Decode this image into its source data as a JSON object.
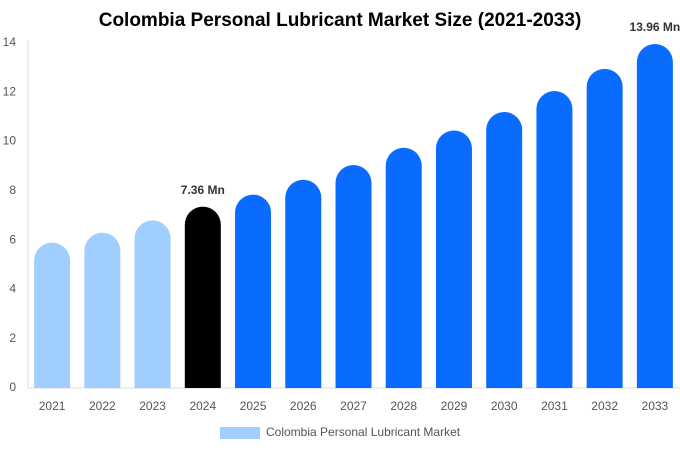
{
  "chart_data": {
    "type": "bar",
    "title": "Colombia Personal Lubricant Market Size (2021-2033)",
    "categories": [
      "2021",
      "2022",
      "2023",
      "2024",
      "2025",
      "2026",
      "2027",
      "2028",
      "2029",
      "2030",
      "2031",
      "2032",
      "2033"
    ],
    "series": [
      {
        "name": "Colombia Personal Lubricant Market",
        "color": "#a0cfff",
        "values": [
          5.9,
          6.3,
          6.8,
          7.36,
          7.85,
          8.45,
          9.05,
          9.75,
          10.45,
          11.2,
          12.05,
          12.95,
          13.96
        ],
        "colors": [
          "#a0cfff",
          "#a0cfff",
          "#a0cfff",
          "#000000",
          "#0a6cff",
          "#0a6cff",
          "#0a6cff",
          "#0a6cff",
          "#0a6cff",
          "#0a6cff",
          "#0a6cff",
          "#0a6cff",
          "#0a6cff"
        ],
        "value_labels": [
          null,
          null,
          null,
          "7.36 Mn",
          null,
          null,
          null,
          null,
          null,
          null,
          null,
          null,
          "13.96 Mn"
        ]
      }
    ],
    "ylim": [
      0,
      14
    ],
    "yticks": [
      0,
      2,
      4,
      6,
      8,
      10,
      12,
      14
    ],
    "grid": false
  }
}
